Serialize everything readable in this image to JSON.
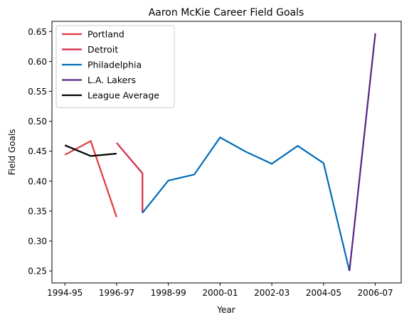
{
  "chart_data": {
    "type": "line",
    "title": "Aaron McKie Career Field Goals",
    "xlabel": "Year",
    "ylabel": "Field Goals",
    "x_ticks": [
      "1994-95",
      "1996-97",
      "1998-99",
      "2000-01",
      "2002-03",
      "2004-05",
      "2006-07"
    ],
    "y_ticks": [
      "0.25",
      "0.30",
      "0.35",
      "0.40",
      "0.45",
      "0.50",
      "0.55",
      "0.60",
      "0.65"
    ],
    "xlim": [
      1993.5,
      2007.0
    ],
    "ylim": [
      0.23,
      0.667
    ],
    "grid": false,
    "legend_position": "top-left",
    "series": [
      {
        "name": "Portland",
        "color": "#E03A3E",
        "points": [
          [
            1994,
            0.444
          ],
          [
            1995,
            0.467
          ],
          [
            1996,
            0.34
          ]
        ]
      },
      {
        "name": "Detroit",
        "color": "#D62646",
        "points": [
          [
            1996,
            0.464
          ],
          [
            1997,
            0.413
          ],
          [
            1997,
            0.347
          ]
        ]
      },
      {
        "name": "Philadelphia",
        "color": "#006BB6",
        "points": [
          [
            1997,
            0.347
          ],
          [
            1998,
            0.401
          ],
          [
            1999,
            0.411
          ],
          [
            2000,
            0.473
          ],
          [
            2001,
            0.449
          ],
          [
            2002,
            0.429
          ],
          [
            2003,
            0.459
          ],
          [
            2004,
            0.43
          ],
          [
            2005,
            0.25
          ]
        ]
      },
      {
        "name": "L.A. Lakers",
        "color": "#552583",
        "points": [
          [
            2005,
            0.25
          ],
          [
            2006,
            0.647
          ]
        ]
      },
      {
        "name": "League Average",
        "color": "#000000",
        "points": [
          [
            1994,
            0.46
          ],
          [
            1995,
            0.442
          ],
          [
            1996,
            0.446
          ]
        ]
      }
    ]
  }
}
